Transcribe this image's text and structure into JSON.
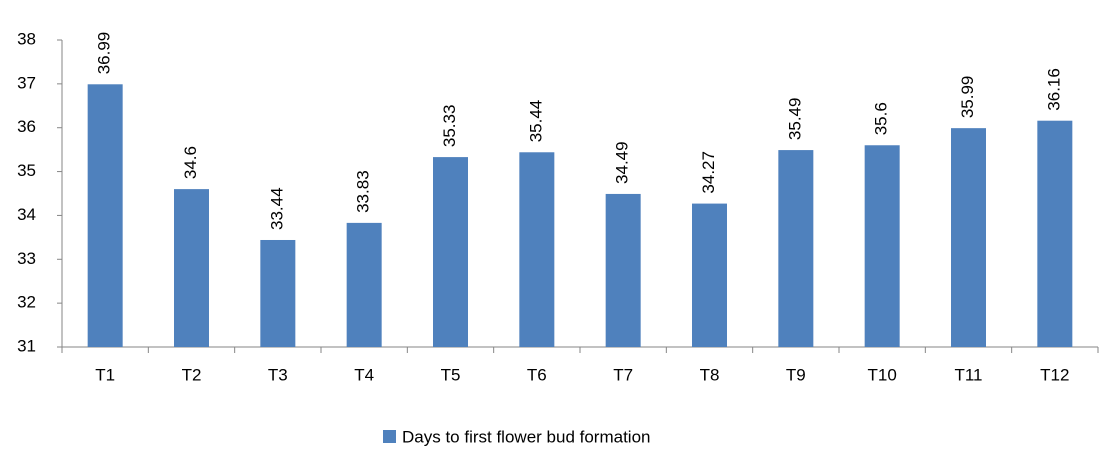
{
  "chart_data": {
    "type": "bar",
    "categories": [
      "T1",
      "T2",
      "T3",
      "T4",
      "T5",
      "T6",
      "T7",
      "T8",
      "T9",
      "T10",
      "T11",
      "T12"
    ],
    "series": [
      {
        "name": "Days to first flower bud formation",
        "color": "#4f81bd",
        "values": [
          36.99,
          34.6,
          33.44,
          33.83,
          35.33,
          35.44,
          34.49,
          34.27,
          35.49,
          35.6,
          35.99,
          36.16
        ]
      }
    ],
    "ylim": [
      31,
      38
    ],
    "yticks": [
      31,
      32,
      33,
      34,
      35,
      36,
      37,
      38
    ],
    "grid": false,
    "legend": "bottom",
    "data_labels": true
  }
}
